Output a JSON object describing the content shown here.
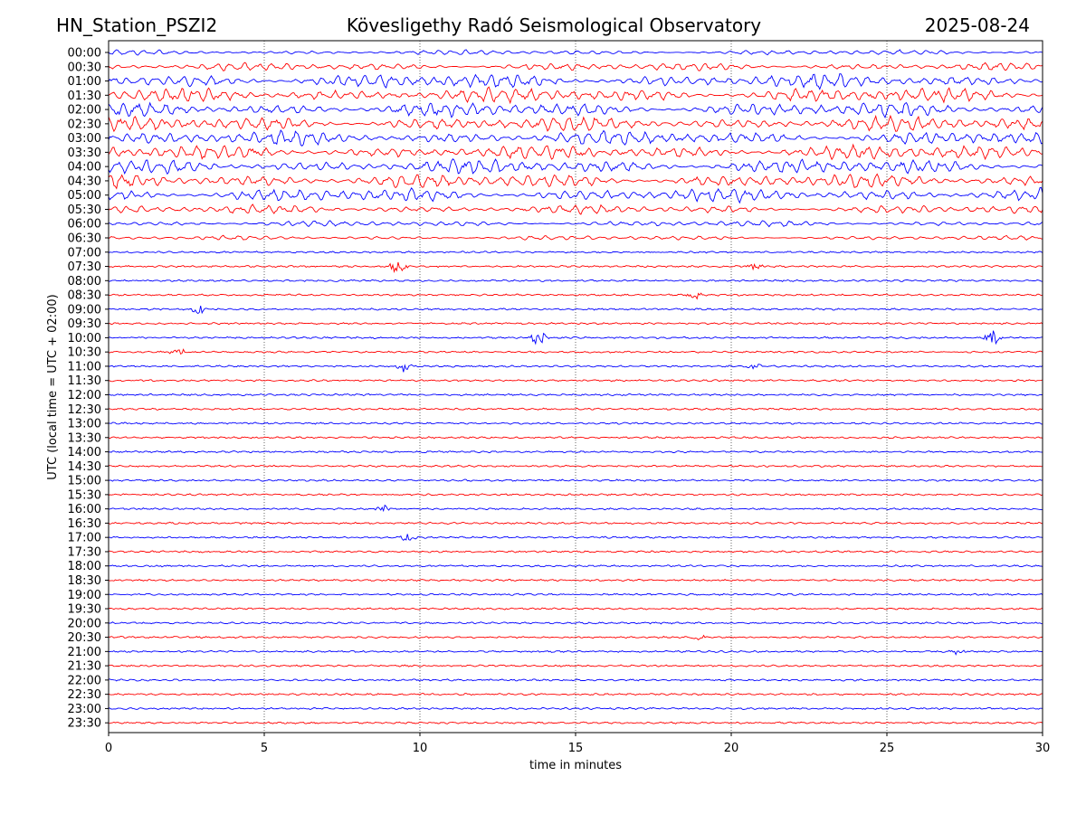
{
  "header": {
    "station": "HN_Station_PSZI2",
    "observatory": "Kövesligethy Radó Seismological Observatory",
    "date": "2025-08-24"
  },
  "chart_data": {
    "type": "line",
    "title": "Kövesligethy Radó Seismological Observatory",
    "xlabel": "time in minutes",
    "ylabel": "UTC (local time = UTC + 02:00)",
    "xlim": [
      0,
      30
    ],
    "xticks": [
      0,
      5,
      10,
      15,
      20,
      25,
      30
    ],
    "grid": "vertical dotted at 5-minute ticks",
    "row_labels": [
      "00:00",
      "00:30",
      "01:00",
      "01:30",
      "02:00",
      "02:30",
      "03:00",
      "03:30",
      "04:00",
      "04:30",
      "05:00",
      "05:30",
      "06:00",
      "06:30",
      "07:00",
      "07:30",
      "08:00",
      "08:30",
      "09:00",
      "09:30",
      "10:00",
      "10:30",
      "11:00",
      "11:30",
      "12:00",
      "12:30",
      "13:00",
      "13:30",
      "14:00",
      "14:30",
      "15:00",
      "15:30",
      "16:00",
      "16:30",
      "17:00",
      "17:30",
      "18:00",
      "18:30",
      "19:00",
      "19:30",
      "20:00",
      "20:30",
      "21:00",
      "21:30",
      "22:00",
      "22:30",
      "23:00",
      "23:30"
    ],
    "trace_colors": [
      "#0000ff",
      "#ff0000"
    ],
    "relative_activity": [
      0.35,
      0.55,
      1.0,
      1.0,
      1.0,
      1.0,
      1.0,
      1.0,
      1.0,
      1.0,
      0.95,
      0.6,
      0.4,
      0.3,
      0.15,
      0.15,
      0.15,
      0.15,
      0.15,
      0.15,
      0.15,
      0.15,
      0.15,
      0.15,
      0.15,
      0.15,
      0.15,
      0.12,
      0.12,
      0.1,
      0.12,
      0.12,
      0.12,
      0.1,
      0.12,
      0.08,
      0.1,
      0.1,
      0.1,
      0.08,
      0.08,
      0.1,
      0.1,
      0.08,
      0.08,
      0.08,
      0.06,
      0.06
    ],
    "events": [
      {
        "row": 15,
        "minute": 9.3,
        "amp": 1.0
      },
      {
        "row": 15,
        "minute": 20.8,
        "amp": 0.4
      },
      {
        "row": 17,
        "minute": 18.8,
        "amp": 0.6
      },
      {
        "row": 18,
        "minute": 2.9,
        "amp": 0.6
      },
      {
        "row": 20,
        "minute": 13.8,
        "amp": 1.0
      },
      {
        "row": 20,
        "minute": 28.4,
        "amp": 1.0
      },
      {
        "row": 21,
        "minute": 2.2,
        "amp": 0.8
      },
      {
        "row": 22,
        "minute": 9.5,
        "amp": 0.8
      },
      {
        "row": 22,
        "minute": 20.7,
        "amp": 0.5
      },
      {
        "row": 32,
        "minute": 8.8,
        "amp": 0.5
      },
      {
        "row": 34,
        "minute": 9.6,
        "amp": 0.6
      },
      {
        "row": 41,
        "minute": 19.0,
        "amp": 0.4
      },
      {
        "row": 42,
        "minute": 27.3,
        "amp": 0.4
      }
    ]
  }
}
